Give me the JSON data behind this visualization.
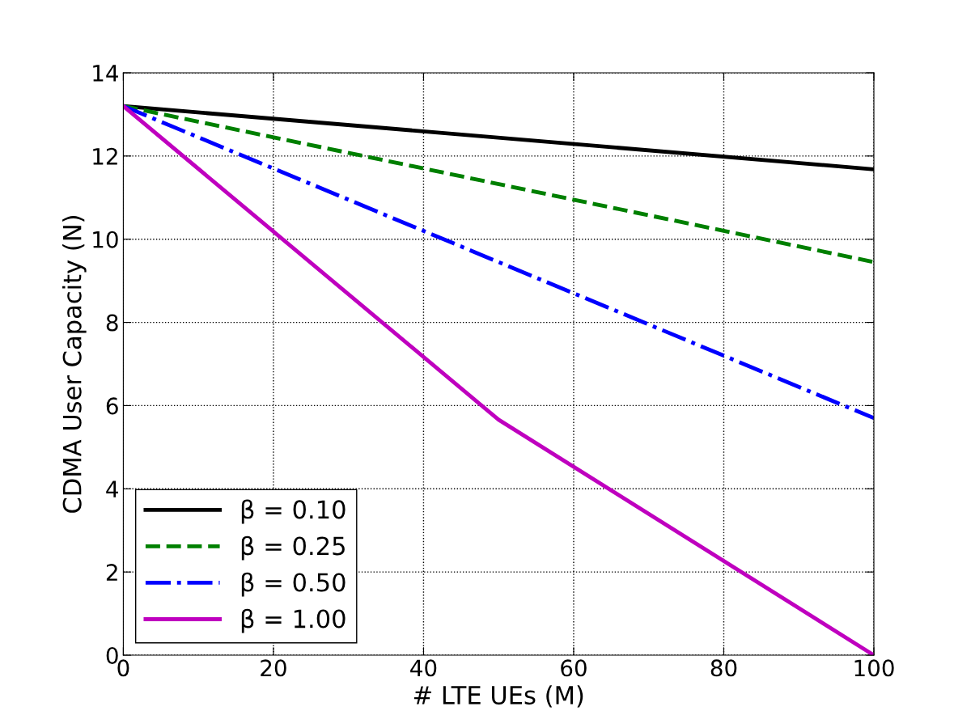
{
  "chart_data": {
    "type": "line",
    "xlabel": "# LTE UEs (M)",
    "ylabel": "CDMA User Capacity (N)",
    "xlim": [
      0,
      100
    ],
    "xticks": [
      0,
      20,
      40,
      60,
      80,
      100
    ],
    "ylim": [
      0,
      14
    ],
    "yticks": [
      0,
      2,
      4,
      6,
      8,
      10,
      12,
      14
    ],
    "grid": true,
    "legend": "bottom left",
    "series": [
      {
        "name": "β = 0.10",
        "color": "#000000",
        "line_style": "solid",
        "x": [
          0,
          100
        ],
        "values": [
          13.2,
          11.68
        ]
      },
      {
        "name": "β = 0.25",
        "color": "#008000",
        "line_style": "dashed",
        "x": [
          0,
          100
        ],
        "values": [
          13.2,
          9.45
        ]
      },
      {
        "name": "β = 0.50",
        "color": "#0000ff",
        "line_style": "dashdot",
        "x": [
          0,
          100
        ],
        "values": [
          13.2,
          5.7
        ]
      },
      {
        "name": "β = 1.00",
        "color": "#bf00bf",
        "line_style": "solid",
        "x": [
          0,
          50,
          100
        ],
        "values": [
          13.2,
          5.66,
          0
        ]
      }
    ]
  }
}
